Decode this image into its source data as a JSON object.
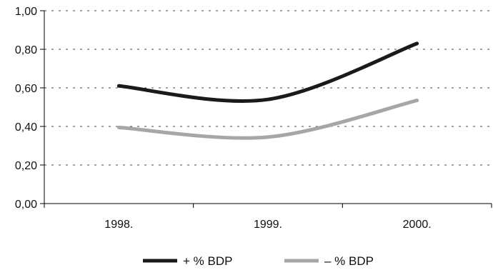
{
  "chart_data": {
    "type": "line",
    "categories": [
      "1998.",
      "1999.",
      "2000."
    ],
    "series": [
      {
        "name": "+ % BDP",
        "values": [
          0.61,
          0.54,
          0.83
        ],
        "color": "#1a1a1a"
      },
      {
        "name": "– % BDP",
        "values": [
          0.395,
          0.345,
          0.535
        ],
        "color": "#a6a6a6"
      }
    ],
    "ylim": [
      0,
      1
    ],
    "yticks": [
      "0,00",
      "0,20",
      "0,40",
      "0,60",
      "0,80",
      "1,00"
    ],
    "grid": true,
    "legend": "bottom-center",
    "title": "",
    "xlabel": "",
    "ylabel": ""
  }
}
